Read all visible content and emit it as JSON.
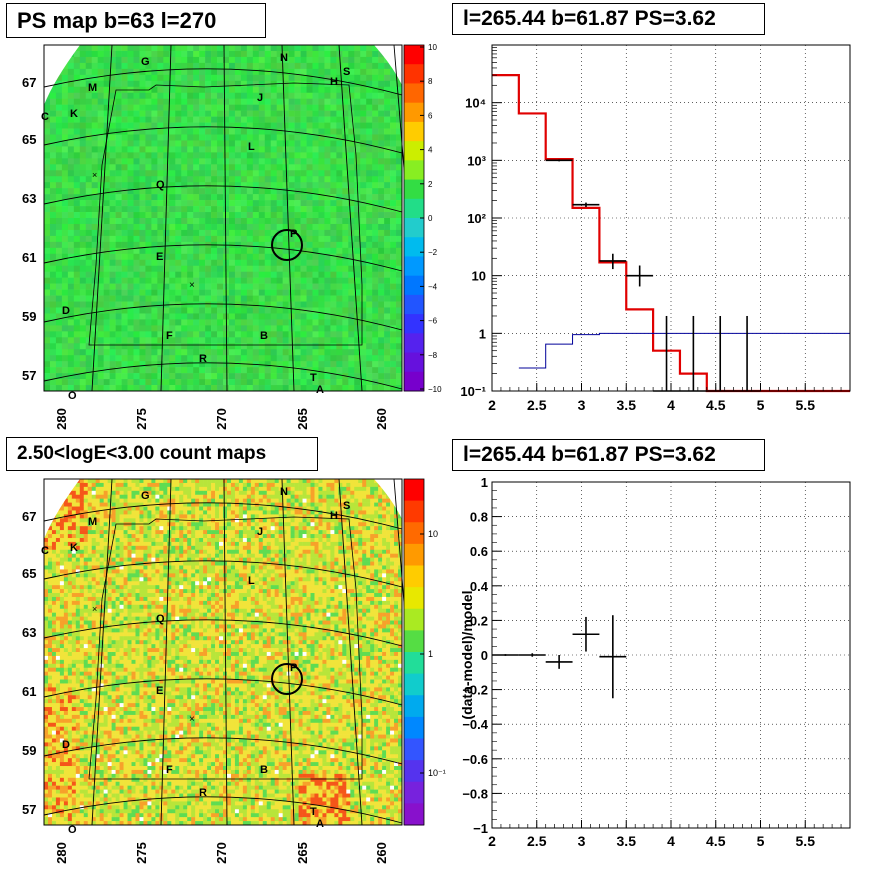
{
  "titles": {
    "ps_map": "PS map b=63 l=270",
    "count_map": "2.50<logE<3.00 count maps",
    "spectrum": "l=265.44 b=61.87 PS=3.62",
    "residual": "l=265.44 b=61.87 PS=3.62"
  },
  "colors": {
    "axis": "#000000",
    "red_model": "#e00000",
    "blue_model": "#000099",
    "data": "#000000",
    "map_green": "#33e64a",
    "map_yellow": "#f2e23a"
  },
  "sky_maps": {
    "lat_ticks": [
      "67",
      "65",
      "63",
      "61",
      "59",
      "57"
    ],
    "lon_ticks": [
      "280",
      "275",
      "270",
      "265",
      "260"
    ],
    "source_labels": [
      "G",
      "N",
      "M",
      "H",
      "S",
      "C",
      "K",
      "J",
      "L",
      "Q",
      "P",
      "E",
      "D",
      "F",
      "B",
      "R",
      "T",
      "A",
      "O"
    ],
    "ps_colorbar": [
      "10",
      "8",
      "6",
      "4",
      "2",
      "0",
      "−2",
      "−4",
      "−6",
      "−8",
      "−10"
    ],
    "count_colorbar": [
      "10",
      "1",
      "10⁻¹"
    ]
  },
  "chart_data": [
    {
      "type": "step",
      "title": "l=265.44 b=61.87 PS=3.62",
      "xlabel": "",
      "ylabel": "",
      "xlim": [
        2,
        6
      ],
      "ylim": [
        0.1,
        100000
      ],
      "log_y": true,
      "grid": true,
      "x_ticks": [
        "2",
        "2.5",
        "3",
        "3.5",
        "4",
        "4.5",
        "5",
        "5.5"
      ],
      "y_ticks": [
        "10⁻¹",
        "1",
        "10",
        "10²",
        "10³",
        "10⁴"
      ],
      "series": [
        {
          "color": "#e00000",
          "bin_edges": [
            2.0,
            2.3,
            2.6,
            2.9,
            3.2,
            3.5,
            3.8,
            4.1,
            4.4,
            6.0
          ],
          "values": [
            30000,
            6500,
            1050,
            150,
            17,
            2.6,
            0.5,
            0.2,
            0.1
          ]
        },
        {
          "color": "#000099",
          "bin_edges": [
            2.3,
            2.6,
            2.9,
            3.2,
            6.0
          ],
          "values": [
            0.25,
            0.65,
            0.95,
            1.0
          ]
        }
      ],
      "points": [
        {
          "x": 2.75,
          "y": 1000,
          "xerr": 0.15,
          "ylow": 960,
          "yhigh": 1040
        },
        {
          "x": 3.05,
          "y": 170,
          "xerr": 0.15,
          "ylow": 155,
          "yhigh": 185
        },
        {
          "x": 3.35,
          "y": 18,
          "xerr": 0.15,
          "ylow": 13,
          "yhigh": 24
        },
        {
          "x": 3.65,
          "y": 10,
          "xerr": 0.15,
          "ylow": 6.5,
          "yhigh": 15
        },
        {
          "x": 3.95,
          "y": 0.1,
          "xerr": 0.15,
          "ylow": 0.1,
          "yhigh": 2
        },
        {
          "x": 4.25,
          "y": 0.1,
          "xerr": 0.15,
          "ylow": 0.1,
          "yhigh": 2
        },
        {
          "x": 4.55,
          "y": 0.1,
          "xerr": 0.15,
          "ylow": 0.1,
          "yhigh": 2
        },
        {
          "x": 4.85,
          "y": 0.1,
          "xerr": 0.15,
          "ylow": 0.1,
          "yhigh": 2
        }
      ]
    },
    {
      "type": "scatter",
      "title": "l=265.44 b=61.87 PS=3.62",
      "xlabel": "",
      "ylabel": "(data-model)/model",
      "xlim": [
        2,
        6
      ],
      "ylim": [
        -1,
        1
      ],
      "grid": true,
      "x_ticks": [
        "2",
        "2.5",
        "3",
        "3.5",
        "4",
        "4.5",
        "5",
        "5.5"
      ],
      "y_ticks": [
        "−1",
        "−0.8",
        "−0.6",
        "−0.4",
        "−0.2",
        "0",
        "0.2",
        "0.4",
        "0.6",
        "0.8",
        "1"
      ],
      "points": [
        {
          "x": 2.15,
          "y": 0.0,
          "xerr": 0.15,
          "yerr": 0.005
        },
        {
          "x": 2.45,
          "y": 0.0,
          "xerr": 0.15,
          "yerr": 0.01
        },
        {
          "x": 2.75,
          "y": -0.04,
          "xerr": 0.15,
          "yerr": 0.04
        },
        {
          "x": 3.05,
          "y": 0.12,
          "xerr": 0.15,
          "yerr": 0.1
        },
        {
          "x": 3.35,
          "y": -0.01,
          "xerr": 0.15,
          "yerr": 0.24
        }
      ]
    }
  ]
}
